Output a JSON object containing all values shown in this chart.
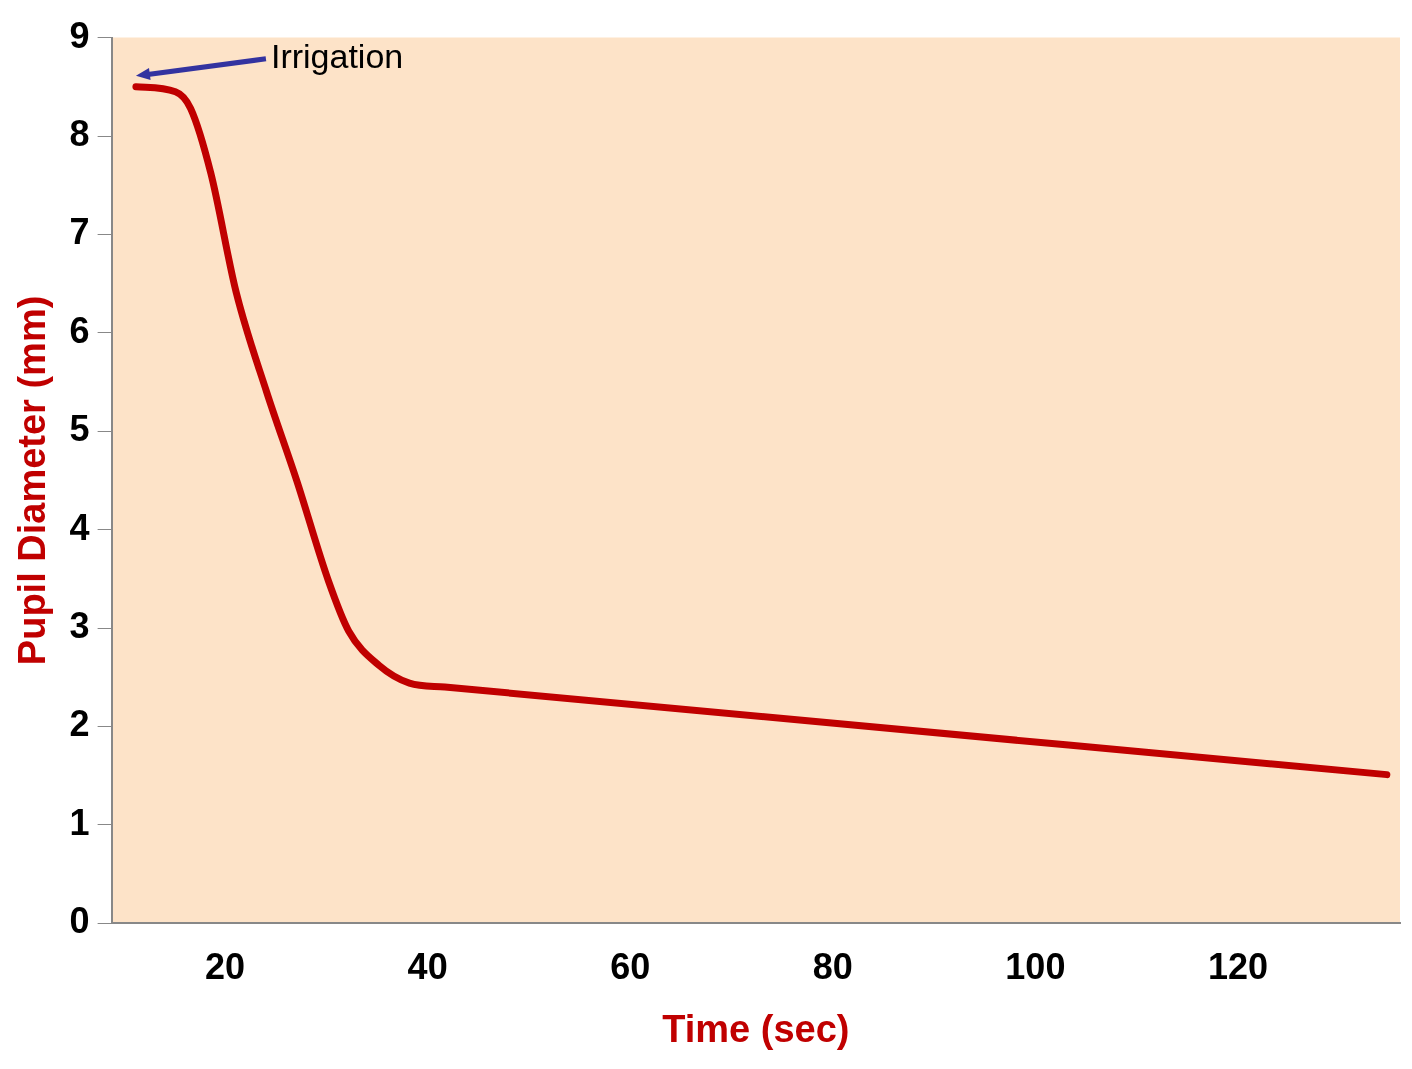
{
  "chart_data": {
    "type": "line",
    "xlabel": "Time (sec)",
    "ylabel": "Pupil Diameter (mm)",
    "x": [
      11.2,
      15.1,
      16.6,
      18.6,
      21.1,
      24.1,
      27.1,
      30.2,
      32.2,
      35.2,
      38.2,
      41.7,
      134.7
    ],
    "series": [
      {
        "color": "#c00000",
        "values": [
          8.5,
          8.45,
          8.28,
          7.62,
          6.41,
          5.4,
          4.49,
          3.48,
          2.97,
          2.62,
          2.44,
          2.4,
          1.51
        ]
      }
    ],
    "xlim": [
      8.8,
      136
    ],
    "xticks": [
      20,
      40,
      60,
      80,
      100,
      120
    ],
    "ylim": [
      0,
      9
    ],
    "yticks": [
      0,
      1,
      2,
      3,
      4,
      5,
      6,
      7,
      8,
      9
    ],
    "grid": false,
    "legend": false,
    "marker": "none",
    "line_style": "solid",
    "annotations": [
      "Irrigation"
    ]
  }
}
